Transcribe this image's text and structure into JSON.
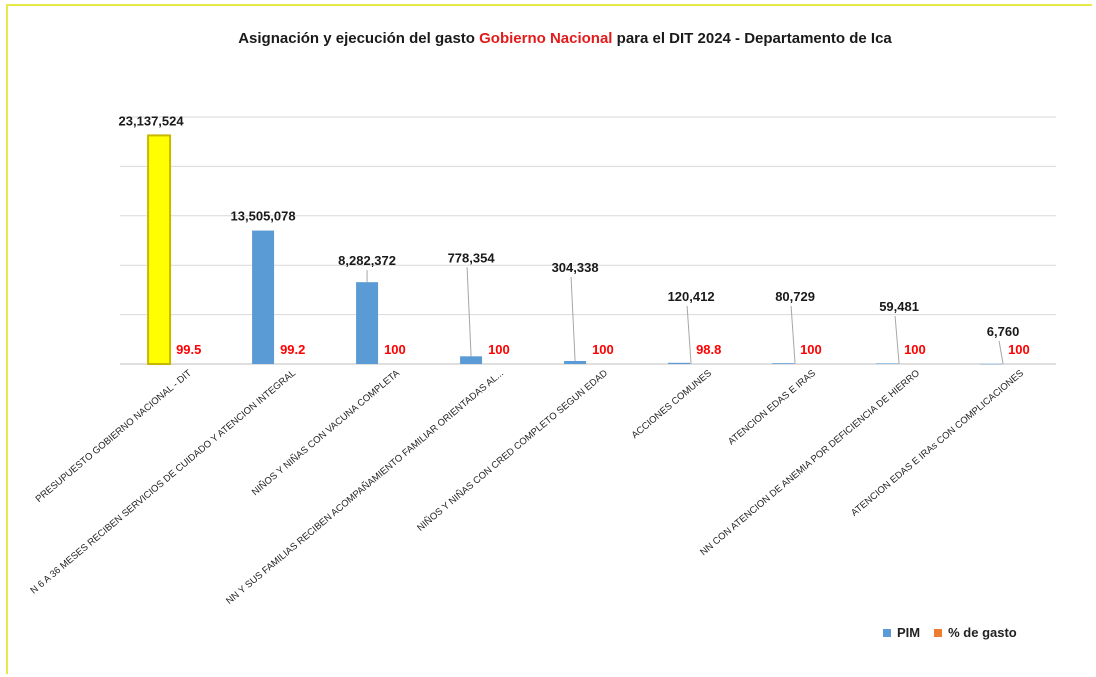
{
  "title": {
    "part1": "Asignación y ejecución del gasto ",
    "highlight": "Gobierno Nacional",
    "part2": " para el DIT 2024 - Departamento de Ica"
  },
  "colors": {
    "pim": "#5b9bd5",
    "highlight_bar": "#ffff00",
    "highlight_border": "#c9b800",
    "gasto": "#ed7d31",
    "pct_label": "#ff0000",
    "grid": "#d9d9d9"
  },
  "legend": {
    "pim_label": "PIM",
    "gasto_label": "% de gasto"
  },
  "chart_data": {
    "type": "bar",
    "categories": [
      "PRESUPUESTO GOBIERNO NACIONAL - DIT",
      "N 6 A 36 MESES RECIBEN SERVICIOS DE CUIDADO Y ATENCION INTEGRAL",
      "NIÑOS Y NIÑAS CON VACUNA COMPLETA",
      "NN Y SUS FAMILIAS RECIBEN ACOMPAÑAMIENTO FAMILIAR ORIENTADAS AL...",
      "NIÑOS Y NIÑAS CON CRED COMPLETO SEGUN EDAD",
      "ACCIONES COMUNES",
      "ATENCION EDAS E IRAS",
      "NN CON ATENCION DE ANEMIA POR DEFICIENCIA DE HIERRO",
      "ATENCION EDAS E IRAs CON COMPLICACIONES"
    ],
    "series": [
      {
        "name": "PIM",
        "values": [
          23137524,
          13505078,
          8282372,
          778354,
          304338,
          120412,
          80729,
          59481,
          6760
        ],
        "labels": [
          "23,137,524",
          "13,505,078",
          "8,282,372",
          "778,354",
          "304,338",
          "120,412",
          "80,729",
          "59,481",
          "6,760"
        ]
      },
      {
        "name": "% de gasto",
        "values": [
          99.5,
          99.2,
          100,
          100,
          100,
          98.8,
          100,
          100,
          100
        ],
        "labels": [
          "99.5",
          "99.2",
          "100",
          "100",
          "100",
          "98.8",
          "100",
          "100",
          "100"
        ]
      }
    ],
    "highlighted_category_index": 0,
    "ylim": [
      0,
      25000000
    ],
    "grid": true,
    "legend_position": "bottom-right"
  }
}
